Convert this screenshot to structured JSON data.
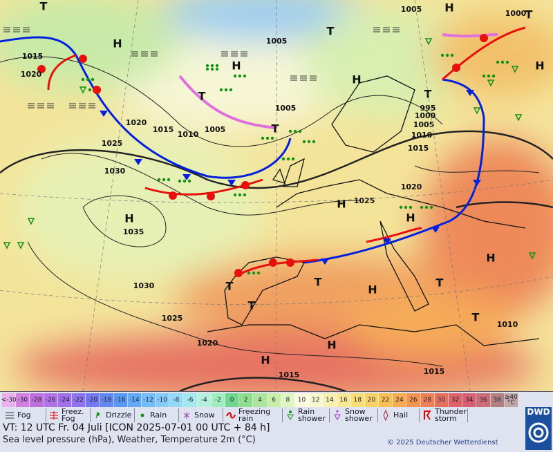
{
  "map": {
    "pressure_labels": [
      "1015",
      "1020",
      "1020",
      "1015",
      "1010",
      "1005",
      "1005",
      "1005",
      "1005",
      "1000",
      "995",
      "1000",
      "1005",
      "1010",
      "1015",
      "1020",
      "1025",
      "1030",
      "1035",
      "1030",
      "1025",
      "1020",
      "1025",
      "1015",
      "1015",
      "1010"
    ],
    "centers": [
      "H",
      "H",
      "H",
      "H",
      "H",
      "H",
      "H",
      "H",
      "H",
      "H",
      "H",
      "H",
      "T",
      "T",
      "T",
      "T",
      "T",
      "T",
      "T",
      "T",
      "T",
      "T",
      "T"
    ]
  },
  "scale": {
    "labels": [
      "<-30",
      "-30",
      "-28",
      "-26",
      "-24",
      "-22",
      "-20",
      "-18",
      "-16",
      "-14",
      "-12",
      "-10",
      "-8",
      "-6",
      "-4",
      "-2",
      "0",
      "2",
      "4",
      "6",
      "8",
      "10",
      "12",
      "14",
      "16",
      "18",
      "20",
      "22",
      "24",
      "26",
      "28",
      "30",
      "32",
      "34",
      "36",
      "38",
      "≥40 °C"
    ],
    "colors": [
      "#eab0ee",
      "#d27fe0",
      "#c070dc",
      "#b072e6",
      "#a070ea",
      "#8e74f0",
      "#7478f0",
      "#6288f0",
      "#5898f2",
      "#62aaf8",
      "#74bcf8",
      "#84cbf8",
      "#94daf6",
      "#a4e8ee",
      "#b4f0dc",
      "#a0eec0",
      "#6ed68e",
      "#8ede8e",
      "#acE69e",
      "#c6eea8",
      "#def6c0",
      "#fafae2",
      "#f8f6ce",
      "#f8f0b0",
      "#f8e894",
      "#f8de74",
      "#f8d064",
      "#f8c054",
      "#f6aa52",
      "#f49452",
      "#ee8058",
      "#e6705e",
      "#de6268",
      "#d65e70",
      "#cc6c78",
      "#b08284",
      "#c0a4a6"
    ]
  },
  "legend": {
    "items": [
      "Fog",
      "Freez. Fog",
      "Drizzle",
      "Rain",
      "Snow",
      "Freezing rain",
      "Rain shower",
      "Snow shower",
      "Hail",
      "Thunder storm"
    ]
  },
  "logo": "DWD",
  "footer": {
    "valid_time": "VT: 12 UTC Fr.  04 Juli [ICON 2025-07-01  00 UTC + 84 h]",
    "description": "Sea level pressure (hPa), Weather, Temperature 2m (°C)",
    "copyright": "© 2025 Deutscher Wetterdienst"
  }
}
